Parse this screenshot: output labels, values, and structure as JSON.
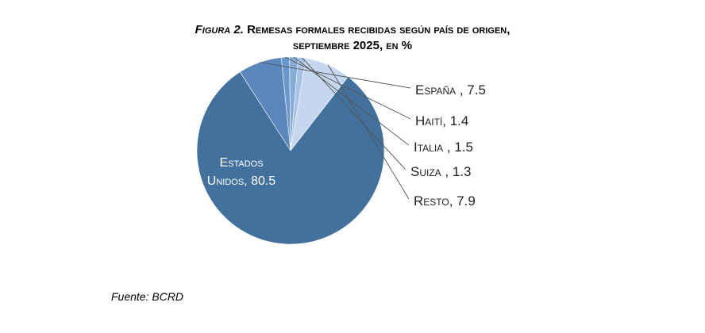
{
  "title": {
    "prefix": "Figura 2.",
    "line1": "Remesas formales recibidas según país de origen,",
    "line2": "septiembre 2025, en %"
  },
  "source": "Fuente: BCRD",
  "chart_data": {
    "type": "pie",
    "title": "Figura 2. Remesas formales recibidas según país de origen, septiembre 2025, en %",
    "slices": [
      {
        "label": "Estados Unidos",
        "value": 80.5,
        "color": "#41719c",
        "text": "Estados Unidos, 80.5"
      },
      {
        "label": "España",
        "value": 7.5,
        "color": "#5a87bc",
        "text": "España , 7.5"
      },
      {
        "label": "Haití",
        "value": 1.4,
        "color": "#6a97cc",
        "text": "Haití, 1.4"
      },
      {
        "label": "Italia",
        "value": 1.5,
        "color": "#86acd8",
        "text": "Italia , 1.5"
      },
      {
        "label": "Suiza",
        "value": 1.3,
        "color": "#a6c2e4",
        "text": "Suiza , 1.3"
      },
      {
        "label": "Resto",
        "value": 7.9,
        "color": "#c5d7ee",
        "text": "Resto, 7.9"
      }
    ]
  }
}
